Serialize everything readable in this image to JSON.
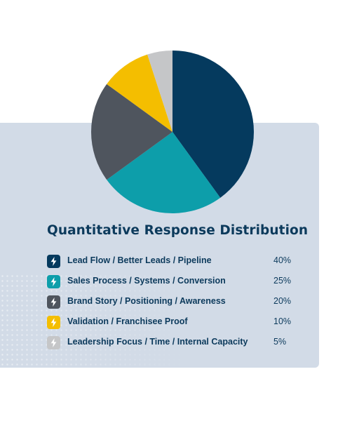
{
  "chart_data": {
    "type": "pie",
    "title": "Quantitative Response Distribution",
    "unit": "%",
    "categories": [
      "Lead Flow / Better Leads / Pipeline",
      "Sales Process / Systems / Conversion",
      "Brand Story / Positioning / Awareness",
      "Validation / Franchisee Proof",
      "Leadership Focus / Time / Internal Capacity"
    ],
    "values": [
      40,
      25,
      20,
      10,
      5
    ],
    "value_labels": [
      "40%",
      "25%",
      "20%",
      "10%",
      "5%"
    ],
    "colors": [
      "#053a5e",
      "#0d9eaa",
      "#4f555e",
      "#f4be00",
      "#c5c6c8"
    ],
    "legend_placement": "bottom",
    "start_angle": "top",
    "direction": "clockwise"
  },
  "legend_icon": "lightning-bolt-icon",
  "colors": {
    "panel_background": "#d2dbe7",
    "text": "#0c3a5c"
  }
}
